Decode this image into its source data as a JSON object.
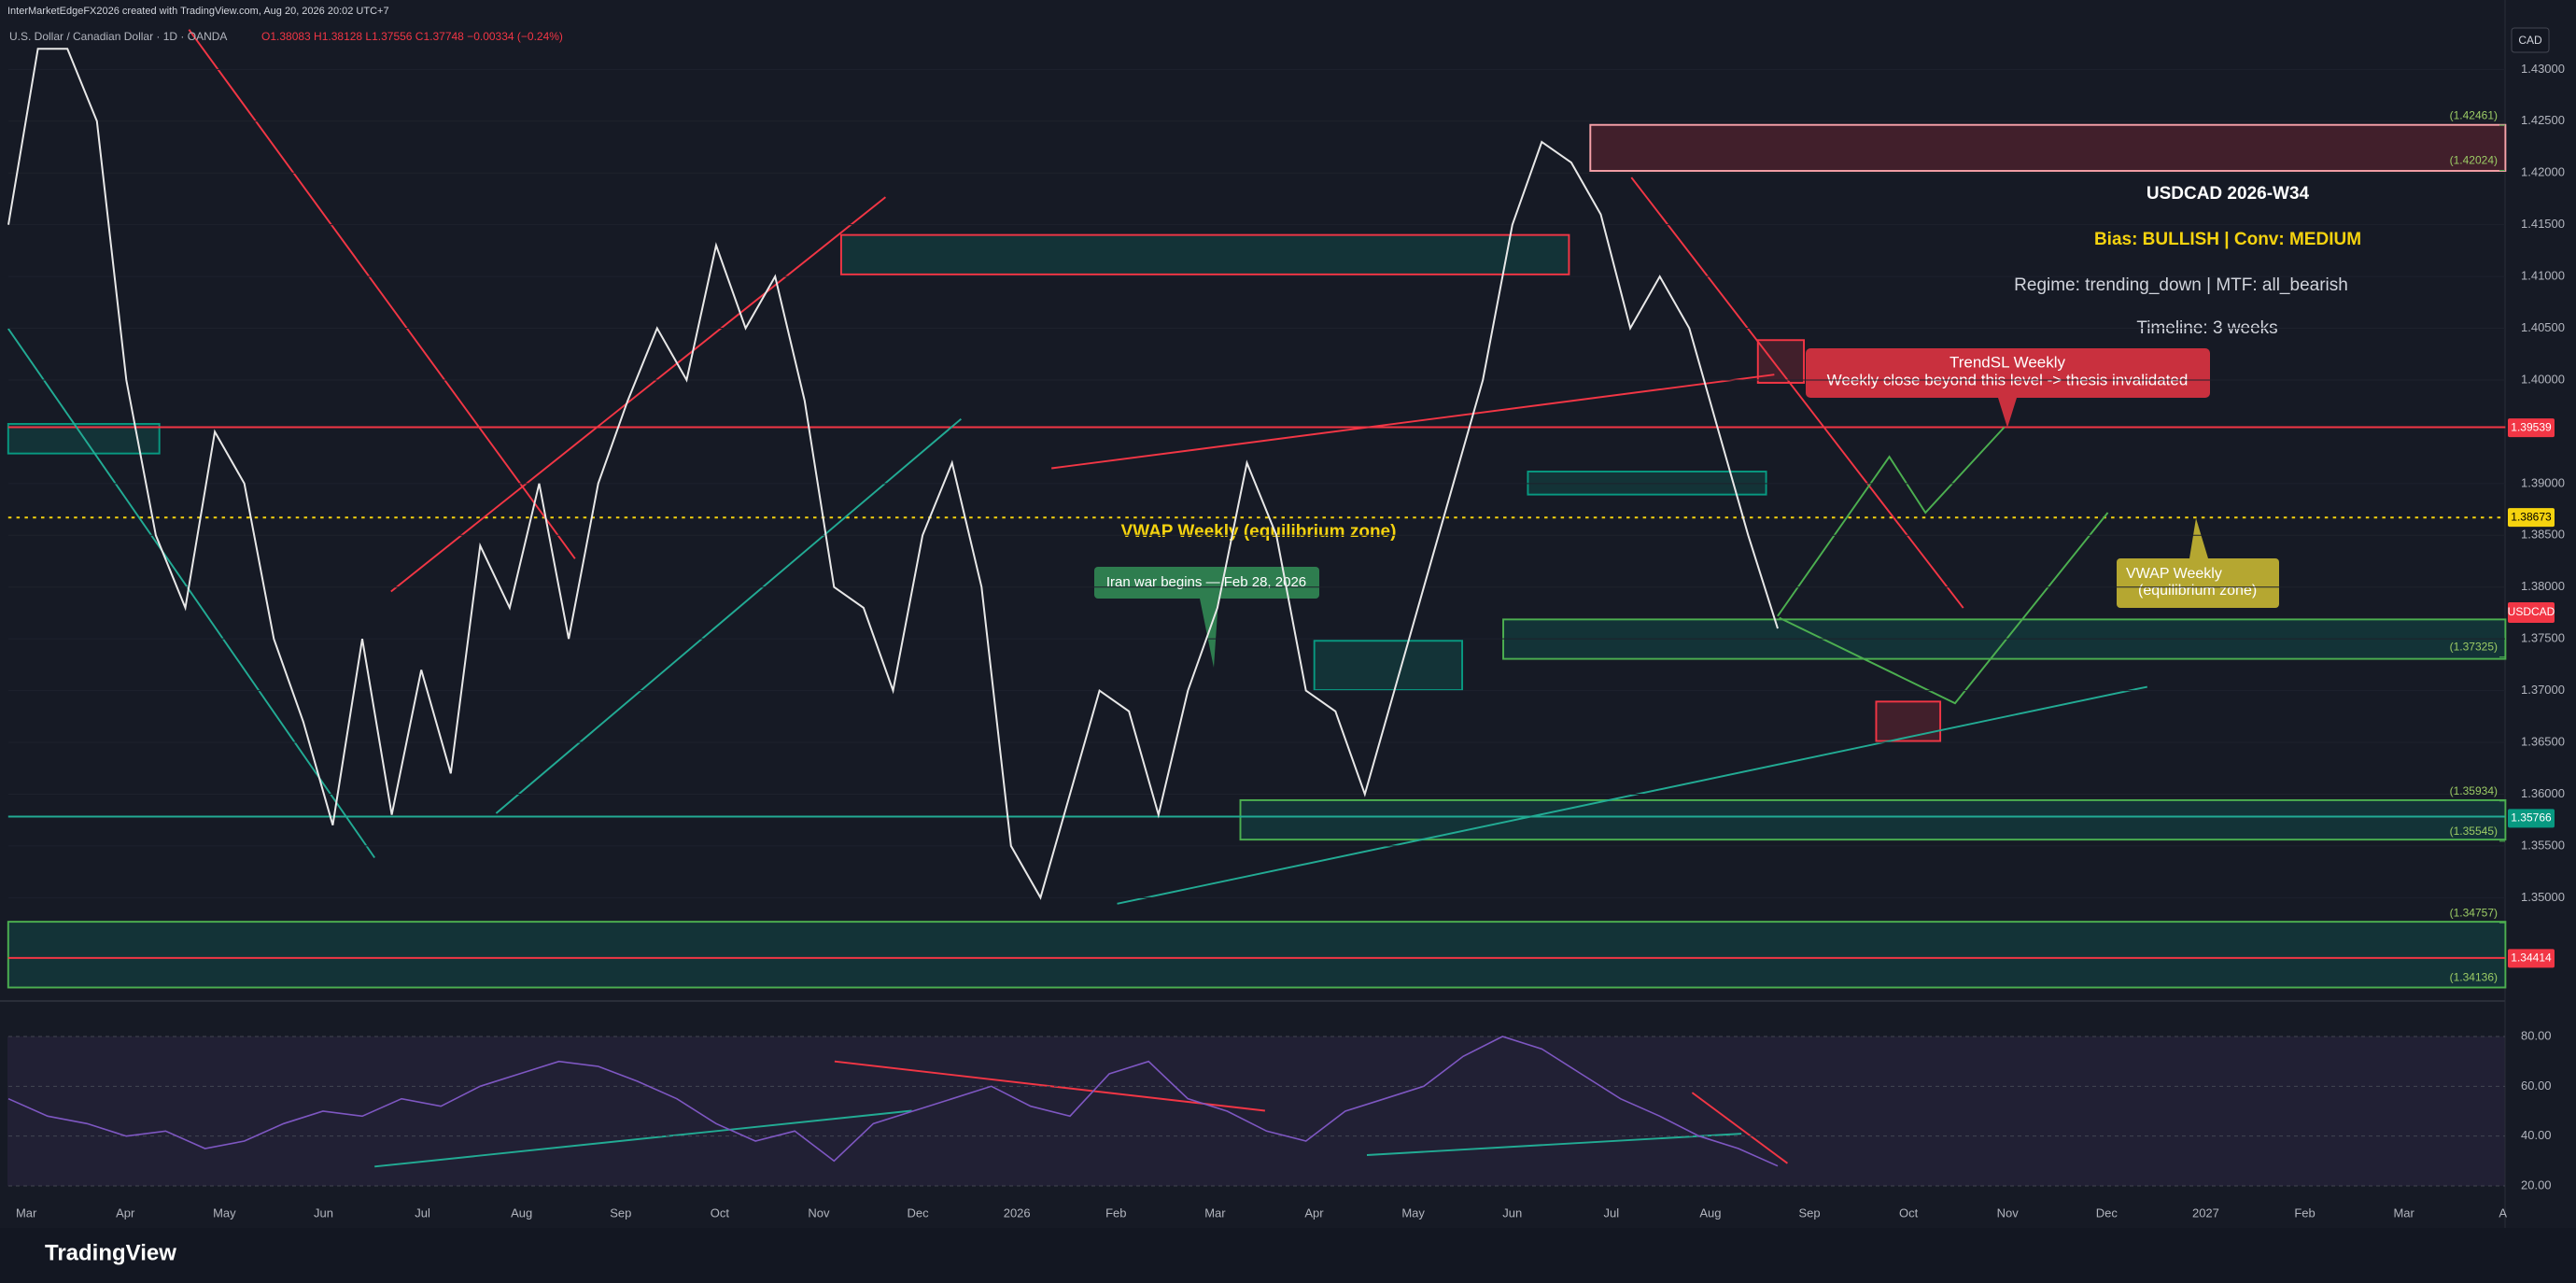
{
  "header": {
    "attribution": "InterMarketEdgeFX2026 created with TradingView.com, Aug 20, 2026 20:02 UTC+7",
    "symbol": "U.S. Dollar / Canadian Dollar · 1D · OANDA",
    "ohlc": "O1.38083 H1.38128 L1.37556 C1.37748 −0.00334 (−0.24%)",
    "currency": "CAD"
  },
  "chart_data": {
    "type": "line",
    "color": "#e8e8e8",
    "values": [
      1.415,
      1.432,
      1.432,
      1.425,
      1.4,
      1.385,
      1.378,
      1.395,
      1.39,
      1.375,
      1.367,
      1.357,
      1.375,
      1.358,
      1.372,
      1.362,
      1.384,
      1.378,
      1.39,
      1.375,
      1.39,
      1.398,
      1.405,
      1.4,
      1.413,
      1.405,
      1.41,
      1.398,
      1.38,
      1.378,
      1.37,
      1.385,
      1.392,
      1.38,
      1.355,
      1.35,
      1.36,
      1.37,
      1.368,
      1.358,
      1.37,
      1.378,
      1.392,
      1.385,
      1.37,
      1.368,
      1.36,
      1.37,
      1.38,
      1.39,
      1.4,
      1.415,
      1.423,
      1.421,
      1.416,
      1.405,
      1.41,
      1.405,
      1.395,
      1.385,
      1.376
    ],
    "ylim": [
      1.3402,
      1.434
    ],
    "yticks": [
      {
        "value": 1.43,
        "label": "1.43000"
      },
      {
        "value": 1.425,
        "label": "1.42500"
      },
      {
        "value": 1.42,
        "label": "1.42000"
      },
      {
        "value": 1.415,
        "label": "1.41500"
      },
      {
        "value": 1.41,
        "label": "1.41000"
      },
      {
        "value": 1.405,
        "label": "1.40500"
      },
      {
        "value": 1.4,
        "label": "1.40000"
      },
      {
        "value": 1.39,
        "label": "1.39000"
      },
      {
        "value": 1.385,
        "label": "1.38500"
      },
      {
        "value": 1.38,
        "label": "1.38000"
      },
      {
        "value": 1.375,
        "label": "1.37500"
      },
      {
        "value": 1.37,
        "label": "1.37000"
      },
      {
        "value": 1.365,
        "label": "1.36500"
      },
      {
        "value": 1.36,
        "label": "1.36000"
      },
      {
        "value": 1.355,
        "label": "1.35500"
      },
      {
        "value": 1.35,
        "label": "1.35000"
      }
    ],
    "levels": [
      {
        "value": 1.42461,
        "label": "(1.42461)"
      },
      {
        "value": 1.42024,
        "label": "(1.42024)"
      },
      {
        "value": 1.37325,
        "label": "(1.37325)"
      },
      {
        "value": 1.35934,
        "label": "(1.35934)"
      },
      {
        "value": 1.35545,
        "label": "(1.35545)"
      },
      {
        "value": 1.34757,
        "label": "(1.34757)"
      },
      {
        "value": 1.34136,
        "label": "(1.34136)"
      }
    ],
    "badges": [
      {
        "value": 1.39539,
        "label": "1.39539",
        "color": "#f23645"
      },
      {
        "value": 1.38673,
        "label": "1.38673",
        "color": "#f5d30f"
      },
      {
        "value": 1.35766,
        "label": "1.35766",
        "color": "#089981"
      },
      {
        "value": 1.34414,
        "label": "1.34414",
        "color": "#f23645"
      }
    ],
    "symbol_badge": "USDCAD",
    "months": [
      "Mar",
      "Apr",
      "May",
      "Jun",
      "Jul",
      "Aug",
      "Sep",
      "Oct",
      "Nov",
      "Dec",
      "2026",
      "Feb",
      "Mar",
      "Apr",
      "May",
      "Jun",
      "Jul",
      "Aug",
      "Sep",
      "Oct",
      "Nov",
      "Dec",
      "2027",
      "Feb",
      "Mar",
      "A"
    ]
  },
  "rsi": {
    "color": "#7e57c2",
    "values": [
      55,
      48,
      45,
      40,
      42,
      35,
      38,
      45,
      50,
      48,
      55,
      52,
      60,
      65,
      70,
      68,
      62,
      55,
      45,
      38,
      42,
      30,
      45,
      50,
      55,
      60,
      52,
      48,
      65,
      70,
      55,
      50,
      42,
      38,
      50,
      55,
      60,
      72,
      80,
      75,
      65,
      55,
      48,
      40,
      35,
      28
    ],
    "ylim": [
      8.75,
      92
    ],
    "yticks": [
      {
        "value": 80,
        "label": "80.00"
      },
      {
        "value": 60,
        "label": "60.00"
      },
      {
        "value": 40,
        "label": "40.00"
      },
      {
        "value": 20,
        "label": "20.00"
      }
    ]
  },
  "annotations": {
    "plan_title": "USDCAD 2026-W34",
    "bias": "Bias: BULLISH | Conv: MEDIUM",
    "regime": "Regime: trending_down | MTF: all_bearish",
    "timeline": "Timeline: 3 weeks",
    "trendsl_title": "TrendSL Weekly",
    "trendsl_text": "Weekly close beyond this level -> thesis invalidated",
    "vwap": "VWAP Weekly (equilibrium zone)",
    "vwap_callout_1": "VWAP Weekly",
    "vwap_callout_2": "(equilibrium zone)",
    "event": "Iran war begins — Feb 28, 2026"
  },
  "footer": {
    "brand": "TradingView"
  }
}
